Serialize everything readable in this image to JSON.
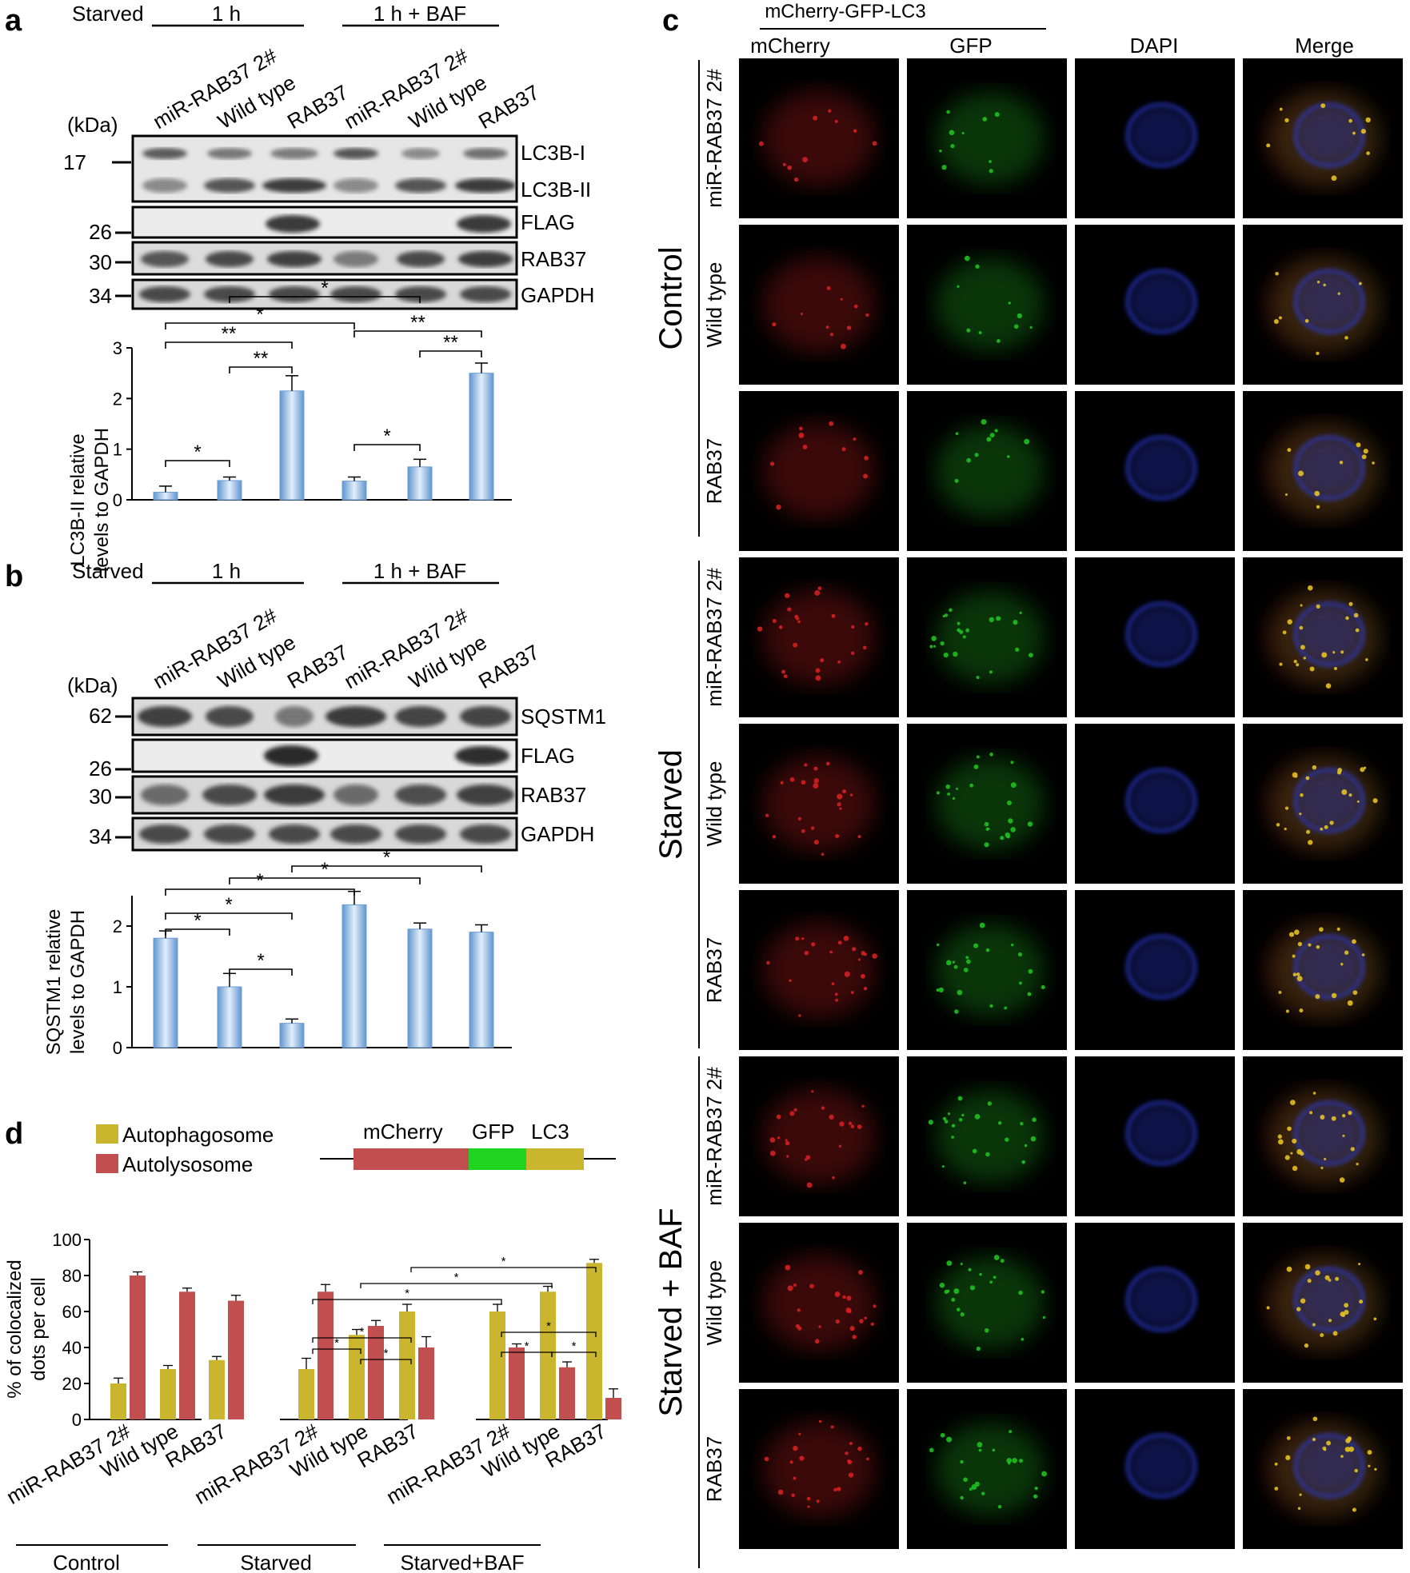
{
  "panel_a": {
    "label": "a",
    "starved": "Starved",
    "group1": "1 h",
    "group2": "1 h + BAF",
    "lanes": [
      "miR-RAB37 2#",
      "Wild type",
      "RAB37",
      "miR-RAB37 2#",
      "Wild type",
      "RAB37"
    ],
    "kda": "(kDa)",
    "markers": [
      "17",
      "26",
      "30",
      "34"
    ],
    "bands": [
      "LC3B-I",
      "LC3B-II",
      "FLAG",
      "RAB37",
      "GAPDH"
    ]
  },
  "panel_b": {
    "label": "b",
    "starved": "Starved",
    "group1": "1 h",
    "group2": "1 h + BAF",
    "lanes": [
      "miR-RAB37 2#",
      "Wild type",
      "RAB37",
      "miR-RAB37 2#",
      "Wild type",
      "RAB37"
    ],
    "kda": "(kDa)",
    "markers": [
      "62",
      "26",
      "30",
      "34"
    ],
    "bands": [
      "SQSTM1",
      "FLAG",
      "RAB37",
      "GAPDH"
    ]
  },
  "panel_c": {
    "label": "c",
    "construct": "mCherry-GFP-LC3",
    "columns": [
      "mCherry",
      "GFP",
      "DAPI",
      "Merge"
    ],
    "groups": [
      "Control",
      "Starved",
      "Starved + BAF"
    ],
    "rows": [
      "miR-RAB37 2#",
      "Wild type",
      "RAB37"
    ],
    "colors": {
      "mCherry": "#d42020",
      "GFP": "#20c020",
      "DAPI": "#2a3bd0",
      "merge_yellow": "#e6c020"
    }
  },
  "panel_d": {
    "label": "d",
    "legend": [
      "Autophagosome",
      "Autolysosome"
    ],
    "construct_segments": [
      "mCherry",
      "GFP",
      "LC3"
    ],
    "colors": {
      "Autophagosome": "#c9b52e",
      "Autolysosome": "#c24f4f",
      "GFP": "#21d321"
    },
    "groups": [
      "Control",
      "Starved",
      "Starved+BAF"
    ]
  },
  "chart_data": [
    {
      "type": "bar",
      "panel": "a",
      "ylabel": "LC3B-II relative levels to GAPDH",
      "categories": [
        "miR-RAB37 2#",
        "Wild type",
        "RAB37",
        "miR-RAB37 2#",
        "Wild type",
        "RAB37"
      ],
      "values": [
        0.15,
        0.38,
        2.15,
        0.37,
        0.65,
        2.5
      ],
      "errors": [
        0.12,
        0.07,
        0.3,
        0.08,
        0.15,
        0.2
      ],
      "ylim": [
        0,
        3
      ],
      "yticks": [
        "0",
        "1",
        "2",
        "3"
      ],
      "significance": [
        "*",
        "**",
        "**",
        "*",
        "*",
        "*",
        "**",
        "**"
      ]
    },
    {
      "type": "bar",
      "panel": "b",
      "ylabel": "SQSTM1 relative levels to GAPDH",
      "categories": [
        "miR-RAB37 2#",
        "Wild type",
        "RAB37",
        "miR-RAB37 2#",
        "Wild type",
        "RAB37"
      ],
      "values": [
        1.8,
        1.0,
        0.4,
        2.35,
        1.95,
        1.9
      ],
      "errors": [
        0.12,
        0.22,
        0.07,
        0.22,
        0.1,
        0.12
      ],
      "ylim": [
        0,
        2.5
      ],
      "yticks": [
        "0",
        "1",
        "2"
      ],
      "significance": [
        "*",
        "*",
        "*",
        "*",
        "*",
        "*"
      ]
    },
    {
      "type": "bar",
      "panel": "d",
      "ylabel": "% of colocalized dots per cell",
      "categories": [
        "miR-RAB37 2#",
        "Wild type",
        "RAB37",
        "miR-RAB37 2#",
        "Wild type",
        "RAB37",
        "miR-RAB37 2#",
        "Wild type",
        "RAB37"
      ],
      "series": [
        {
          "name": "Autophagosome",
          "values": [
            20,
            28,
            33,
            28,
            47,
            60,
            60,
            71,
            87
          ],
          "errors": [
            3,
            2,
            2,
            6,
            3,
            4,
            4,
            3,
            2
          ]
        },
        {
          "name": "Autolysosome",
          "values": [
            80,
            71,
            66,
            71,
            52,
            40,
            40,
            29,
            12
          ],
          "errors": [
            2,
            2,
            3,
            4,
            3,
            6,
            2,
            3,
            5
          ]
        }
      ],
      "ylim": [
        0,
        100
      ],
      "yticks": [
        "0",
        "20",
        "40",
        "60",
        "80",
        "100"
      ],
      "significance": [
        "*",
        "*",
        "*",
        "*",
        "*",
        "*",
        "*",
        "*",
        "*"
      ]
    }
  ]
}
